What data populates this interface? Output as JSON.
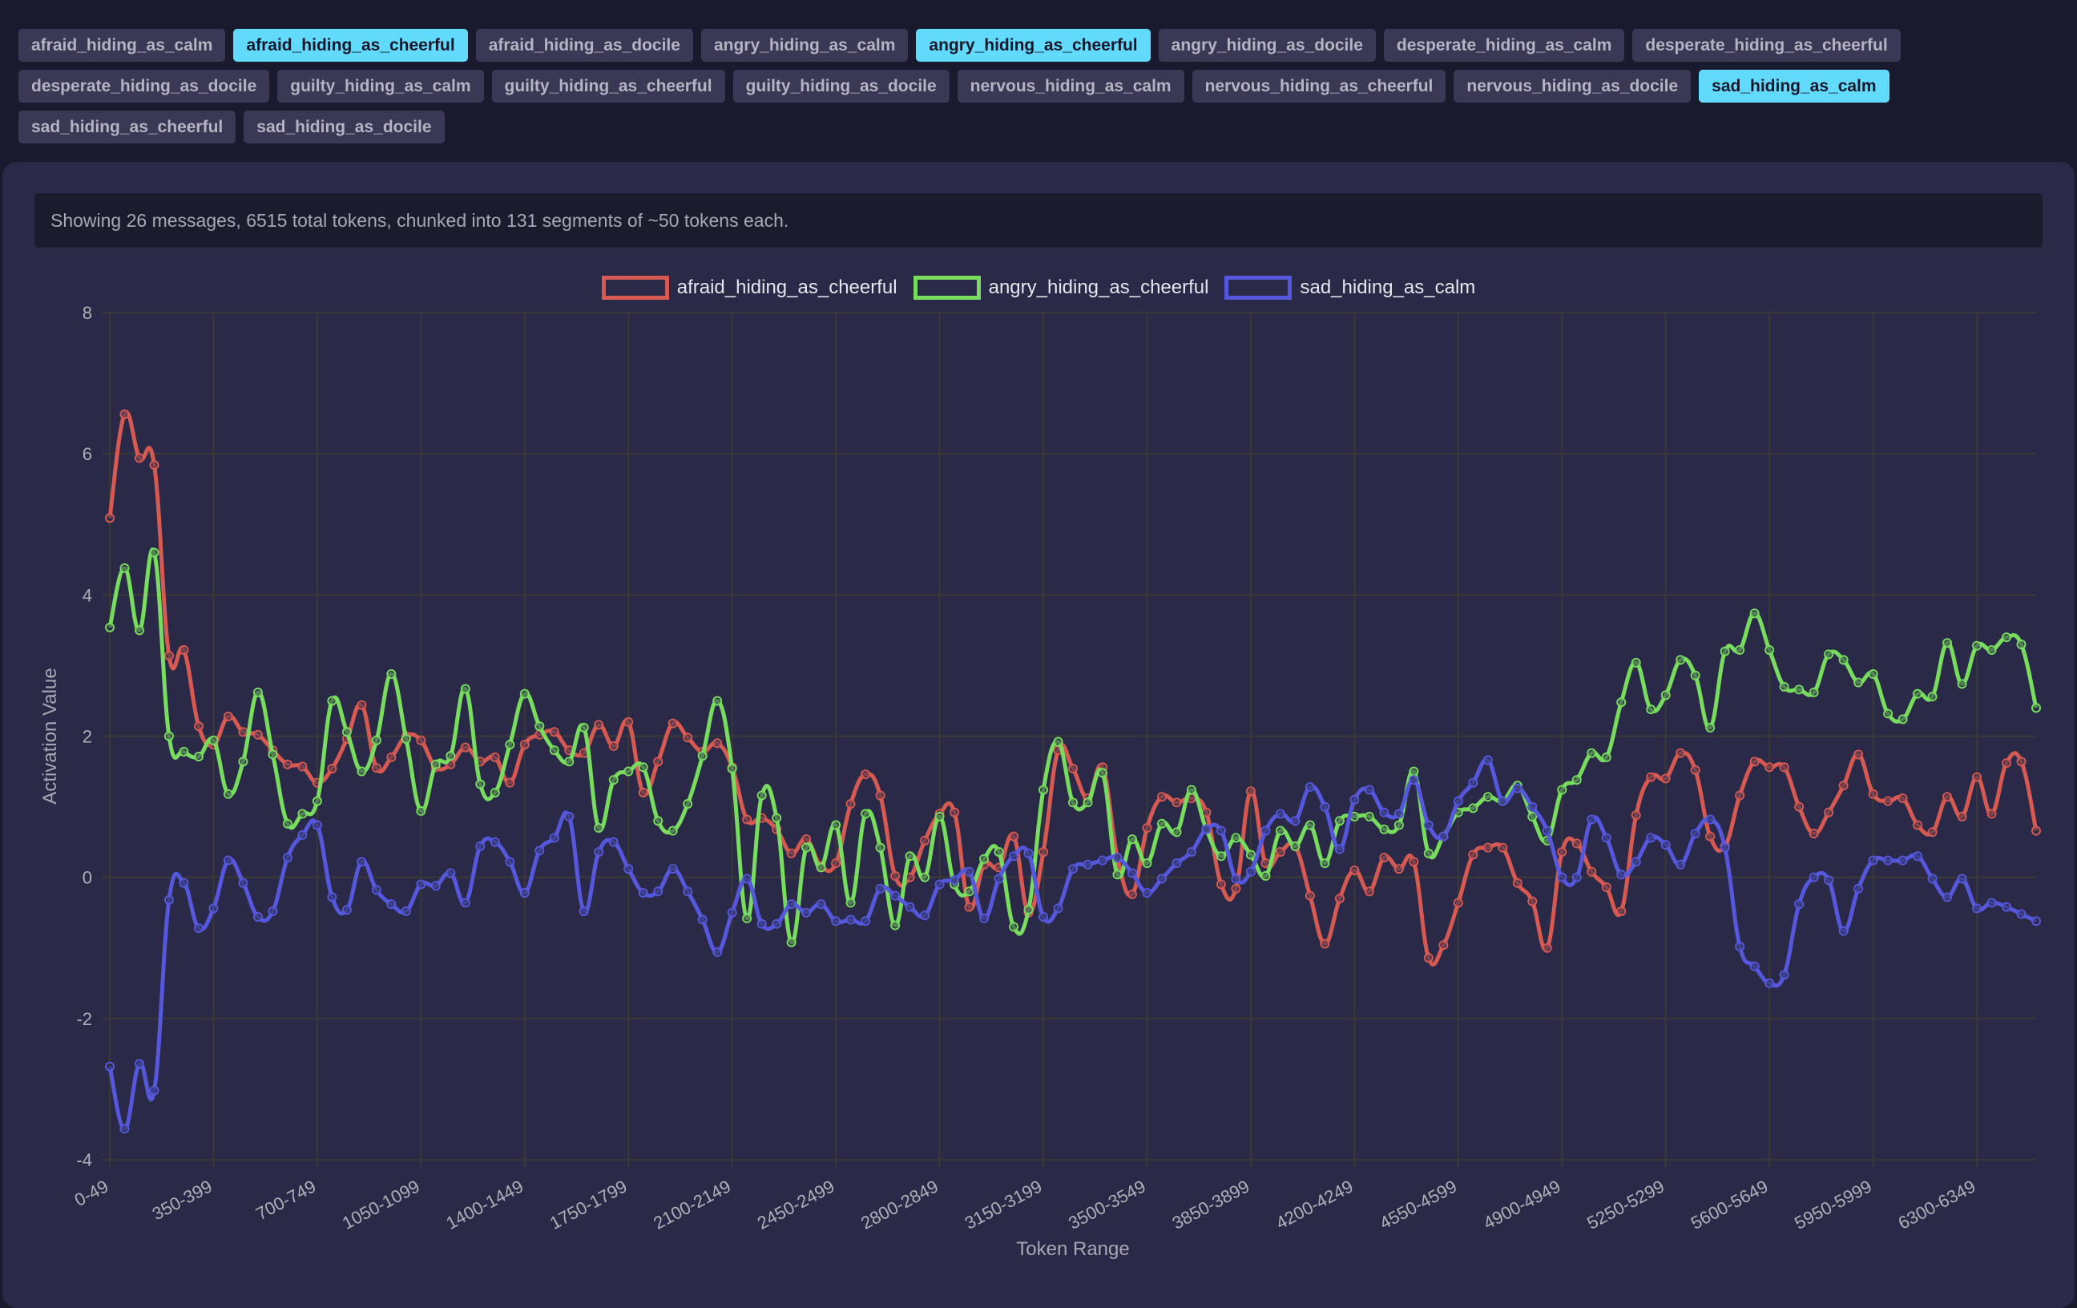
{
  "tags": [
    {
      "label": "afraid_hiding_as_calm",
      "active": false
    },
    {
      "label": "afraid_hiding_as_cheerful",
      "active": true
    },
    {
      "label": "afraid_hiding_as_docile",
      "active": false
    },
    {
      "label": "angry_hiding_as_calm",
      "active": false
    },
    {
      "label": "angry_hiding_as_cheerful",
      "active": true
    },
    {
      "label": "angry_hiding_as_docile",
      "active": false
    },
    {
      "label": "desperate_hiding_as_calm",
      "active": false
    },
    {
      "label": "desperate_hiding_as_cheerful",
      "active": false
    },
    {
      "label": "desperate_hiding_as_docile",
      "active": false
    },
    {
      "label": "guilty_hiding_as_calm",
      "active": false
    },
    {
      "label": "guilty_hiding_as_cheerful",
      "active": false
    },
    {
      "label": "guilty_hiding_as_docile",
      "active": false
    },
    {
      "label": "nervous_hiding_as_calm",
      "active": false
    },
    {
      "label": "nervous_hiding_as_cheerful",
      "active": false
    },
    {
      "label": "nervous_hiding_as_docile",
      "active": false
    },
    {
      "label": "sad_hiding_as_calm",
      "active": true
    },
    {
      "label": "sad_hiding_as_cheerful",
      "active": false
    },
    {
      "label": "sad_hiding_as_docile",
      "active": false
    }
  ],
  "info_text": "Showing 26 messages, 6515 total tokens, chunked into 131 segments of ~50 tokens each.",
  "colors": {
    "active_tag": "#61dafb",
    "inactive_tag": "#3a3854"
  },
  "chart_data": {
    "type": "line",
    "xlabel": "Token Range",
    "ylabel": "Activation Value",
    "ylim": [
      -4,
      8
    ],
    "y_ticks": [
      8,
      6,
      4,
      2,
      0,
      -2,
      -4
    ],
    "x_tick_every": 7,
    "x_tick_labels": [
      "0-49",
      "350-399",
      "700-749",
      "1050-1099",
      "1400-1449",
      "1750-1799",
      "2100-2149",
      "2450-2499",
      "2800-2849",
      "3150-3199",
      "3500-3549",
      "3850-3899",
      "4200-4249",
      "4550-4599",
      "4900-4949",
      "5250-5299",
      "5600-5649",
      "5950-5999",
      "6300-6349"
    ],
    "grid": true,
    "legend": "top-center",
    "series": [
      {
        "name": "afraid_hiding_as_cheerful",
        "color": "#d65a52",
        "values": [
          5.09,
          6.56,
          5.94,
          5.84,
          3.14,
          3.22,
          2.14,
          1.88,
          2.28,
          2.06,
          2.02,
          1.8,
          1.6,
          1.57,
          1.34,
          1.54,
          1.96,
          2.44,
          1.55,
          1.7,
          2.0,
          1.94,
          1.56,
          1.6,
          1.84,
          1.64,
          1.7,
          1.34,
          1.88,
          2.02,
          2.06,
          1.8,
          1.76,
          2.16,
          1.86,
          2.2,
          1.2,
          1.64,
          2.18,
          1.98,
          1.78,
          1.9,
          1.56,
          0.82,
          0.84,
          0.68,
          0.34,
          0.54,
          0.16,
          0.2,
          1.04,
          1.46,
          1.16,
          0.02,
          0.0,
          0.52,
          0.9,
          0.92,
          -0.42,
          0.18,
          0.14,
          0.58,
          -0.5,
          0.36,
          1.8,
          1.54,
          1.12,
          1.56,
          0.28,
          -0.24,
          0.7,
          1.14,
          1.06,
          1.12,
          0.92,
          -0.1,
          -0.16,
          1.22,
          0.2,
          0.36,
          0.44,
          -0.26,
          -0.94,
          -0.3,
          0.1,
          -0.2,
          0.28,
          0.12,
          0.22,
          -1.14,
          -0.96,
          -0.36,
          0.32,
          0.42,
          0.42,
          -0.08,
          -0.34,
          -1.0,
          0.36,
          0.48,
          0.08,
          -0.14,
          -0.48,
          0.88,
          1.42,
          1.4,
          1.76,
          1.52,
          0.58,
          0.44,
          1.16,
          1.64,
          1.56,
          1.56,
          1.0,
          0.62,
          0.92,
          1.3,
          1.74,
          1.18,
          1.08,
          1.12,
          0.74,
          0.64,
          1.14,
          0.86,
          1.42,
          0.9,
          1.62,
          1.64,
          0.66
        ]
      },
      {
        "name": "angry_hiding_as_cheerful",
        "color": "#78dc5e",
        "values": [
          3.54,
          4.38,
          3.5,
          4.6,
          2.0,
          1.78,
          1.71,
          1.94,
          1.18,
          1.64,
          2.62,
          1.74,
          0.76,
          0.9,
          1.08,
          2.5,
          2.06,
          1.5,
          1.94,
          2.88,
          1.96,
          0.94,
          1.6,
          1.72,
          2.67,
          1.32,
          1.2,
          1.88,
          2.6,
          2.14,
          1.8,
          1.64,
          2.12,
          0.7,
          1.38,
          1.5,
          1.56,
          0.8,
          0.66,
          1.04,
          1.72,
          2.5,
          1.54,
          -0.58,
          1.16,
          0.84,
          -0.92,
          0.42,
          0.14,
          0.74,
          -0.36,
          0.9,
          0.42,
          -0.68,
          0.3,
          0.0,
          0.86,
          -0.1,
          -0.2,
          0.26,
          0.36,
          -0.7,
          -0.46,
          1.24,
          1.92,
          1.06,
          1.06,
          1.48,
          0.04,
          0.54,
          0.2,
          0.76,
          0.64,
          1.24,
          0.68,
          0.3,
          0.56,
          0.32,
          0.02,
          0.66,
          0.44,
          0.74,
          0.2,
          0.8,
          0.86,
          0.86,
          0.68,
          0.74,
          1.5,
          0.34,
          0.58,
          0.92,
          0.98,
          1.14,
          1.08,
          1.3,
          0.86,
          0.52,
          1.24,
          1.38,
          1.76,
          1.7,
          2.48,
          3.04,
          2.38,
          2.58,
          3.08,
          2.86,
          2.12,
          3.2,
          3.22,
          3.74,
          3.22,
          2.7,
          2.66,
          2.62,
          3.16,
          3.08,
          2.76,
          2.88,
          2.32,
          2.24,
          2.6,
          2.56,
          3.32,
          2.74,
          3.28,
          3.22,
          3.4,
          3.3,
          2.4
        ]
      },
      {
        "name": "sad_hiding_as_calm",
        "color": "#5558dc",
        "values": [
          -2.68,
          -3.56,
          -2.64,
          -3.02,
          -0.32,
          -0.08,
          -0.72,
          -0.44,
          0.24,
          -0.08,
          -0.56,
          -0.48,
          0.28,
          0.6,
          0.74,
          -0.28,
          -0.46,
          0.22,
          -0.18,
          -0.38,
          -0.48,
          -0.1,
          -0.12,
          0.06,
          -0.36,
          0.44,
          0.5,
          0.22,
          -0.22,
          0.38,
          0.56,
          0.86,
          -0.48,
          0.36,
          0.5,
          0.12,
          -0.22,
          -0.2,
          0.12,
          -0.2,
          -0.6,
          -1.06,
          -0.5,
          -0.02,
          -0.66,
          -0.66,
          -0.38,
          -0.5,
          -0.38,
          -0.62,
          -0.6,
          -0.62,
          -0.16,
          -0.26,
          -0.42,
          -0.54,
          -0.1,
          -0.04,
          0.08,
          -0.58,
          -0.02,
          0.3,
          0.34,
          -0.56,
          -0.44,
          0.12,
          0.18,
          0.24,
          0.28,
          0.06,
          -0.22,
          -0.02,
          0.2,
          0.36,
          0.68,
          0.66,
          -0.02,
          0.08,
          0.66,
          0.9,
          0.8,
          1.28,
          1.0,
          0.4,
          1.1,
          1.24,
          0.92,
          0.9,
          1.38,
          0.74,
          0.58,
          1.08,
          1.34,
          1.66,
          1.08,
          1.26,
          1.0,
          0.66,
          0.0,
          0.0,
          0.82,
          0.56,
          0.04,
          0.22,
          0.56,
          0.46,
          0.18,
          0.62,
          0.82,
          0.42,
          -0.98,
          -1.26,
          -1.5,
          -1.38,
          -0.38,
          0.0,
          -0.04,
          -0.76,
          -0.16,
          0.24,
          0.24,
          0.24,
          0.3,
          -0.02,
          -0.28,
          -0.02,
          -0.44,
          -0.36,
          -0.42,
          -0.52,
          -0.62
        ]
      }
    ]
  }
}
